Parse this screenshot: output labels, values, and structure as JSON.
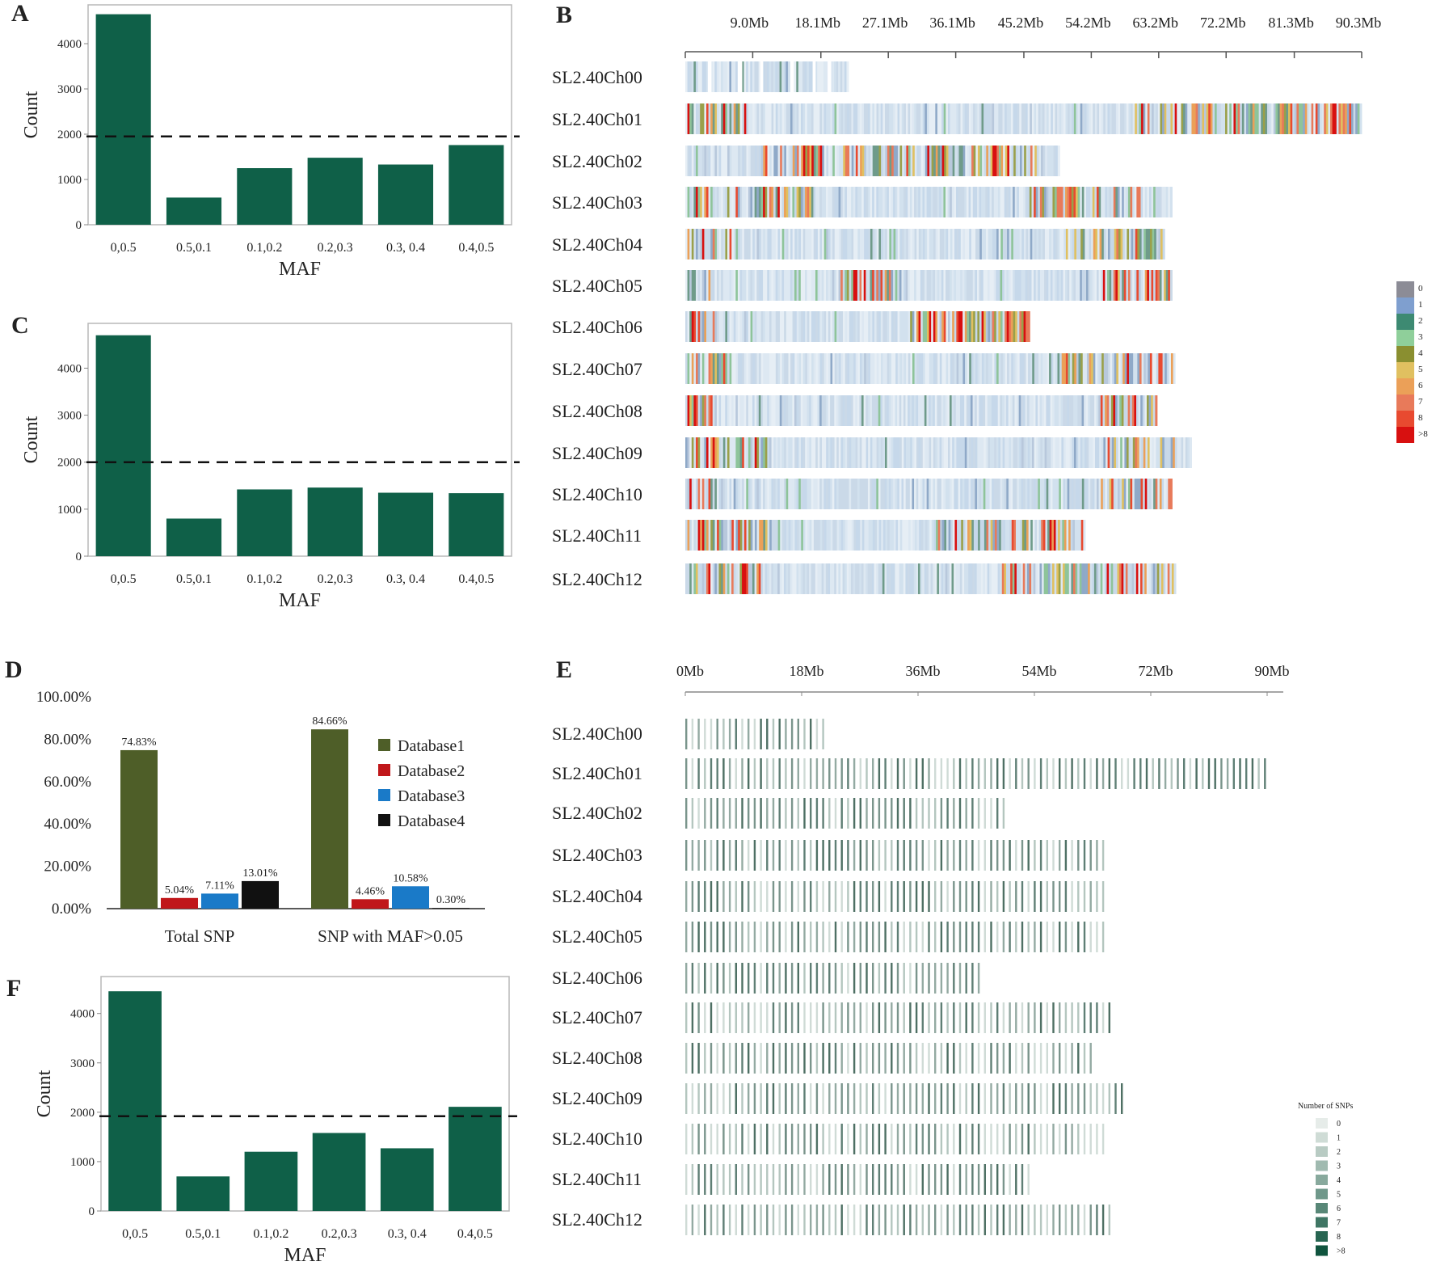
{
  "panels": {
    "a": "A",
    "b": "B",
    "c": "C",
    "d": "D",
    "e": "E",
    "f": "F"
  },
  "colors": {
    "bar": "#0f6048",
    "db1": "#4e5e28",
    "db2": "#c0171a",
    "db3": "#1a7ac8",
    "db4": "#111111"
  },
  "chart_data": [
    {
      "id": "A",
      "type": "bar",
      "title": "",
      "xlabel": "MAF",
      "ylabel": "Count",
      "categories": [
        "0,0.5",
        "0.5,0.1",
        "0.1,0.2",
        "0.2,0.3",
        "0.3, 0.4",
        "0.4,0.5"
      ],
      "values": [
        4650,
        600,
        1250,
        1480,
        1330,
        1760
      ],
      "yticks": [
        0,
        1000,
        2000,
        3000,
        4000
      ],
      "ylim": [
        0,
        4750
      ],
      "threshold": 1950
    },
    {
      "id": "C",
      "type": "bar",
      "title": "",
      "xlabel": "MAF",
      "ylabel": "Count",
      "categories": [
        "0,0.5",
        "0.5,0.1",
        "0.1,0.2",
        "0.2,0.3",
        "0.3, 0.4",
        "0.4,0.5"
      ],
      "values": [
        4700,
        800,
        1420,
        1460,
        1350,
        1340
      ],
      "yticks": [
        0,
        1000,
        2000,
        3000,
        4000
      ],
      "ylim": [
        0,
        4850
      ],
      "threshold": 2000
    },
    {
      "id": "F",
      "type": "bar",
      "title": "",
      "xlabel": "MAF",
      "ylabel": "Count",
      "categories": [
        "0,0.5",
        "0.5,0.1",
        "0.1,0.2",
        "0.2,0.3",
        "0.3, 0.4",
        "0.4,0.5"
      ],
      "values": [
        4450,
        700,
        1200,
        1580,
        1270,
        2110
      ],
      "yticks": [
        0,
        1000,
        2000,
        3000,
        4000
      ],
      "ylim": [
        0,
        4650
      ],
      "threshold": 1920
    },
    {
      "id": "D",
      "type": "bar",
      "title": "",
      "xlabel": "",
      "ylabel": "",
      "categories": [
        "Total SNP",
        "SNP with MAF>0.05"
      ],
      "yticks": [
        "0.00%",
        "20.00%",
        "40.00%",
        "60.00%",
        "80.00%",
        "100.00%"
      ],
      "ylim": [
        0,
        100
      ],
      "series": [
        {
          "name": "Database1",
          "values": [
            74.83,
            84.66
          ],
          "labels": [
            "74.83%",
            "84.66%"
          ]
        },
        {
          "name": "Database2",
          "values": [
            5.04,
            4.46
          ],
          "labels": [
            "5.04%",
            "4.46%"
          ]
        },
        {
          "name": "Database3",
          "values": [
            7.11,
            10.58
          ],
          "labels": [
            "7.11%",
            "10.58%"
          ]
        },
        {
          "name": "Database4",
          "values": [
            13.01,
            0.3
          ],
          "labels": [
            "13.01%",
            "0.30%"
          ]
        }
      ]
    },
    {
      "id": "B",
      "type": "heatmap",
      "title": "",
      "xticks": [
        "9.0Mb",
        "18.1Mb",
        "27.1Mb",
        "36.1Mb",
        "45.2Mb",
        "54.2Mb",
        "63.2Mb",
        "72.2Mb",
        "81.3Mb",
        "90.3Mb"
      ],
      "xlim_mb": [
        0,
        90.3
      ],
      "chromosomes": [
        "SL2.40Ch00",
        "SL2.40Ch01",
        "SL2.40Ch02",
        "SL2.40Ch03",
        "SL2.40Ch04",
        "SL2.40Ch05",
        "SL2.40Ch06",
        "SL2.40Ch07",
        "SL2.40Ch08",
        "SL2.40Ch09",
        "SL2.40Ch10",
        "SL2.40Ch11",
        "SL2.40Ch12"
      ],
      "lengths_mb": [
        21.8,
        90.3,
        50.0,
        65.0,
        64.0,
        65.0,
        46.0,
        65.4,
        63.0,
        67.6,
        65.0,
        53.4,
        65.5
      ],
      "legend_labels": [
        "0",
        "1",
        "2",
        "3",
        "4",
        "5",
        "6",
        "7",
        "8",
        ">8"
      ],
      "legend_colors": [
        "#8c8c96",
        "#7f9fcf",
        "#3d8a72",
        "#8fcf9a",
        "#8a8f30",
        "#e0c060",
        "#eba058",
        "#e87a5a",
        "#e84a30",
        "#d81010"
      ]
    },
    {
      "id": "E",
      "type": "heatmap",
      "title": "",
      "xticks": [
        "0Mb",
        "18Mb",
        "36Mb",
        "54Mb",
        "72Mb",
        "90Mb"
      ],
      "xlim_mb": [
        0,
        90
      ],
      "chromosomes": [
        "SL2.40Ch00",
        "SL2.40Ch01",
        "SL2.40Ch02",
        "SL2.40Ch03",
        "SL2.40Ch04",
        "SL2.40Ch05",
        "SL2.40Ch06",
        "SL2.40Ch07",
        "SL2.40Ch08",
        "SL2.40Ch09",
        "SL2.40Ch10",
        "SL2.40Ch11",
        "SL2.40Ch12"
      ],
      "lengths_mb": [
        21.5,
        90.3,
        49.5,
        64.5,
        64.5,
        64.5,
        45.5,
        65.5,
        63.0,
        67.5,
        64.5,
        53.5,
        65.5
      ],
      "legend_title": "Number of SNPs",
      "legend_labels": [
        "0",
        "1",
        "2",
        "3",
        "4",
        "5",
        "6",
        "7",
        "8",
        ">8"
      ],
      "legend_colors": [
        "#e6ece9",
        "#cfdcd6",
        "#b8cbc3",
        "#a0bab0",
        "#88a99d",
        "#6f988a",
        "#588777",
        "#3f7664",
        "#276551",
        "#10543e"
      ]
    }
  ]
}
